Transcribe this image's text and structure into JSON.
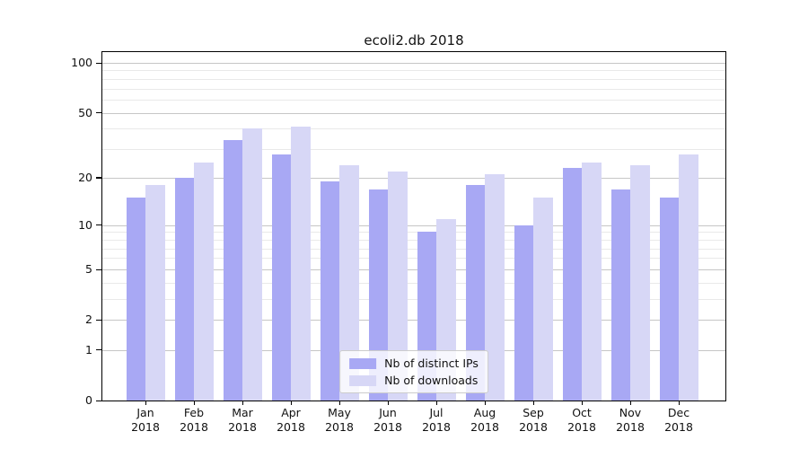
{
  "title": "ecoli2.db 2018",
  "chart_data": {
    "type": "bar",
    "title": "ecoli2.db 2018",
    "categories": [
      "Jan",
      "Feb",
      "Mar",
      "Apr",
      "May",
      "Jun",
      "Jul",
      "Aug",
      "Sep",
      "Oct",
      "Nov",
      "Dec"
    ],
    "x_tick_second_line": "2018",
    "series": [
      {
        "name": "Nb of distinct IPs",
        "color": "#a8a8f4",
        "values": [
          15,
          20,
          34,
          28,
          19,
          17,
          9,
          18,
          10,
          23,
          17,
          15
        ]
      },
      {
        "name": "Nb of downloads",
        "color": "#d7d7f6",
        "values": [
          18,
          25,
          40,
          41,
          24,
          22,
          11,
          21,
          15,
          25,
          24,
          28
        ]
      }
    ],
    "yscale": "log1p",
    "ylim": [
      0,
      107
    ],
    "yticks": [
      100,
      50,
      20,
      10,
      5,
      2,
      1,
      0
    ],
    "minor_yticks": [
      90,
      80,
      70,
      60,
      40,
      30,
      9,
      8,
      7,
      6,
      4,
      3
    ],
    "grid": true,
    "grid_major_color": "#c6c6c6",
    "grid_minor_color": "#e9e9e9",
    "legend": {
      "position": "lower center",
      "entries": [
        "Nb of distinct IPs",
        "Nb of downloads"
      ]
    }
  }
}
